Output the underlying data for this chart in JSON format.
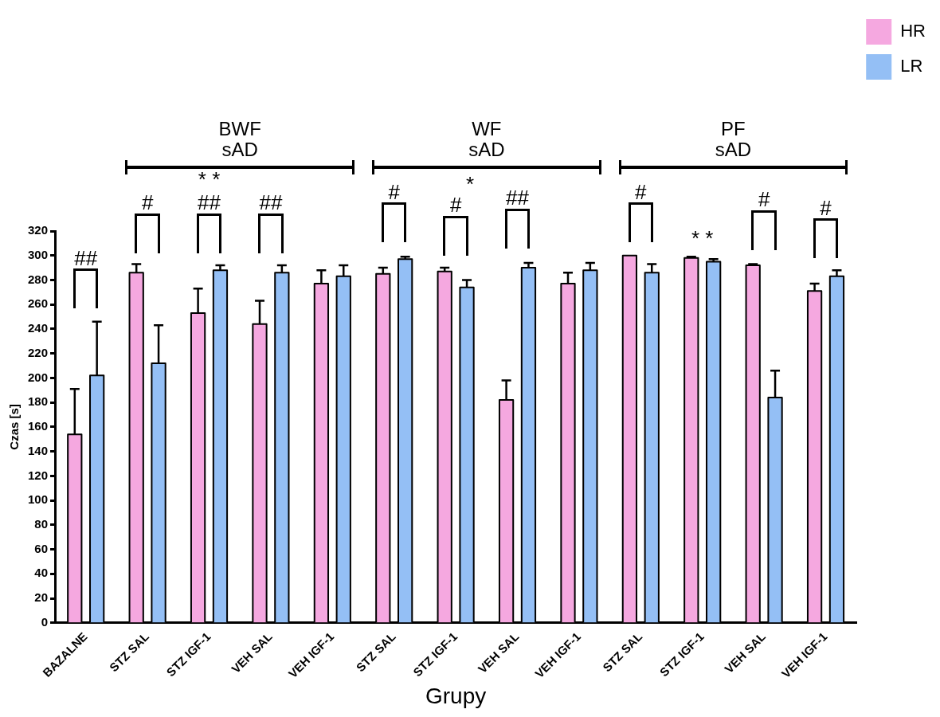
{
  "chart_data": {
    "type": "bar",
    "xlabel": "Grupy",
    "ylabel": "Czas [s]",
    "categories": [
      "BAZALNE",
      "STZ SAL",
      "STZ IGF-1",
      "VEH SAL",
      "VEH IGF-1",
      "STZ SAL",
      "STZ IGF-1",
      "VEH SAL",
      "VEH IGF-1",
      "STZ SAL",
      "STZ IGF-1",
      "VEH SAL",
      "VEH IGF-1"
    ],
    "series": [
      {
        "name": "HR",
        "color": "#f5a8e0",
        "values": [
          154,
          286,
          253,
          244,
          277,
          285,
          287,
          182,
          277,
          300,
          298,
          292,
          271
        ],
        "errors": [
          37,
          7,
          20,
          19,
          11,
          5,
          3,
          16,
          9,
          null,
          1,
          1,
          6
        ]
      },
      {
        "name": "LR",
        "color": "#94bff5",
        "values": [
          202,
          212,
          288,
          286,
          283,
          297,
          274,
          290,
          288,
          286,
          295,
          184,
          283
        ],
        "errors": [
          44,
          31,
          4,
          6,
          9,
          2,
          6,
          4,
          6,
          7,
          2,
          22,
          5
        ]
      }
    ],
    "ylim": [
      0,
      320
    ],
    "yticks": [
      0,
      20,
      40,
      60,
      80,
      100,
      120,
      140,
      160,
      180,
      200,
      220,
      240,
      260,
      280,
      300,
      320
    ],
    "grid": false,
    "legend": "top right",
    "annotations": [
      "BWF\nsAD",
      "WF\nsAD",
      "PF\nsAD",
      "##",
      "#",
      "##",
      "* *",
      "##",
      "#",
      "#",
      "*",
      "##",
      "#",
      "* *",
      "#",
      "#"
    ]
  }
}
